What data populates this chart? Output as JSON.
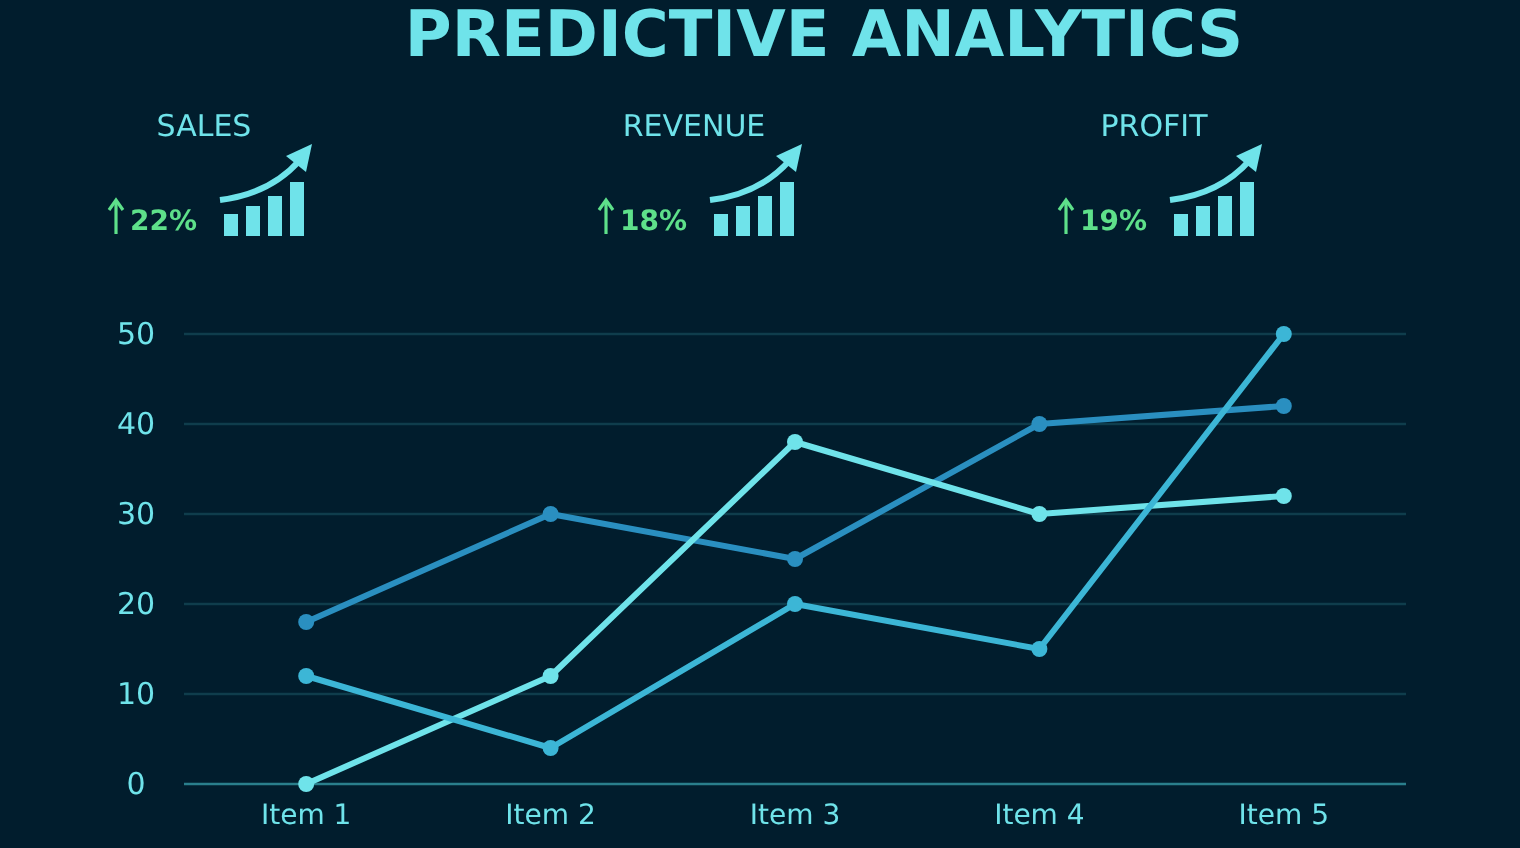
{
  "chart_data": {
    "type": "line",
    "title": "PREDICTIVE ANALYTICS",
    "annotations": [
      "SALES",
      "22%",
      "REVENUE",
      "18%",
      "PROFIT",
      "19%"
    ],
    "categories": [
      "Item 1",
      "Item 2",
      "Item 3",
      "Item 4",
      "Item 5"
    ],
    "series": [
      {
        "color": "#2a8fc0",
        "values": [
          18,
          30,
          25,
          40,
          42
        ]
      },
      {
        "color": "#6fe3ea",
        "values": [
          0,
          12,
          38,
          30,
          32
        ]
      },
      {
        "color": "#3cb6d6",
        "values": [
          12,
          4,
          20,
          15,
          50
        ]
      }
    ],
    "ylim": [
      0,
      50
    ],
    "yticks": [
      0,
      10,
      20,
      30,
      40,
      50
    ],
    "grid": "y",
    "marker": "circle",
    "line_style": "solid"
  }
}
